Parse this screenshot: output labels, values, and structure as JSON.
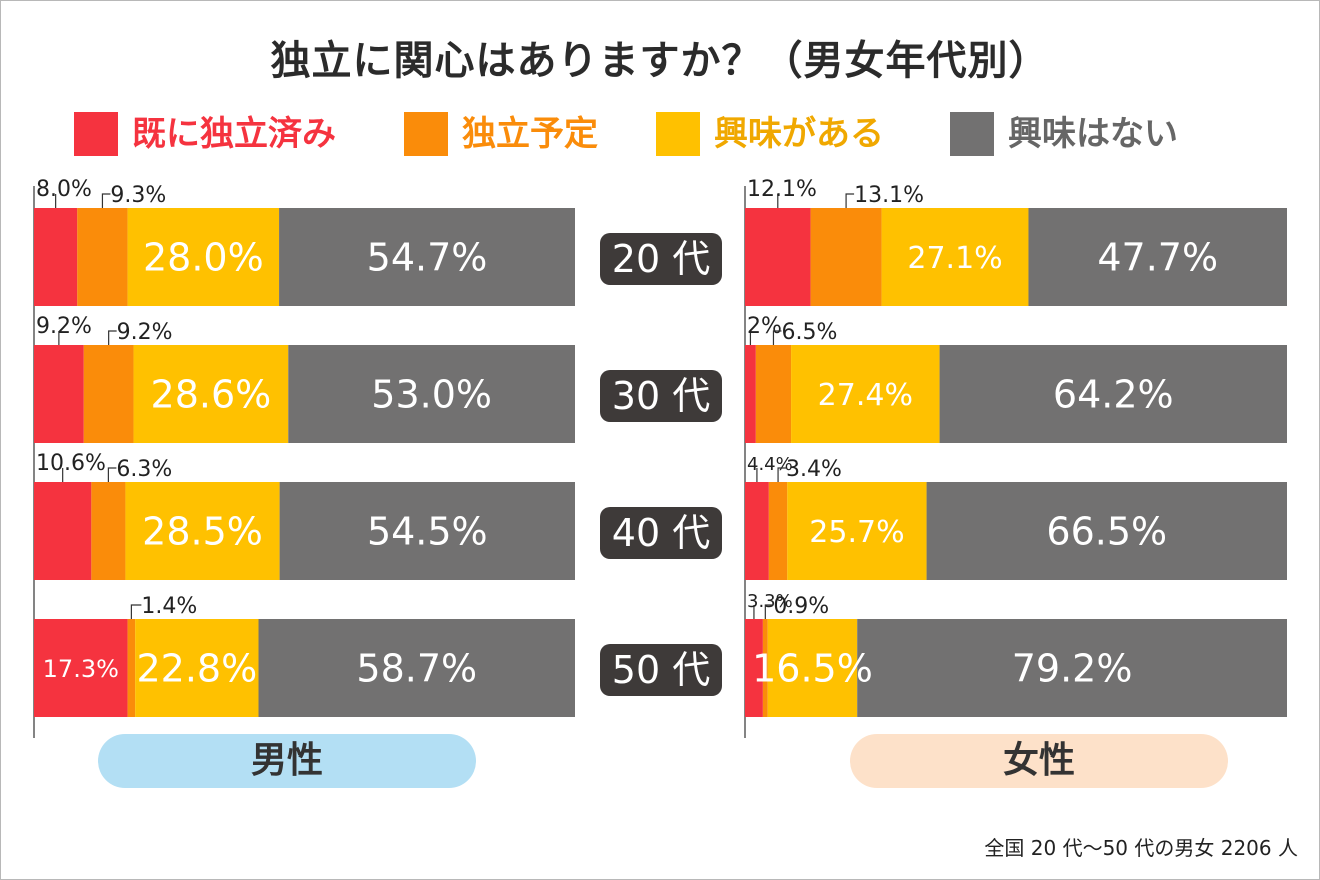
{
  "title": "独立に関心はありますか？（男女年代別）",
  "legend": [
    {
      "label": "既に独立済み",
      "color": "#f5333f"
    },
    {
      "label": "独立予定",
      "color": "#fa8c0a"
    },
    {
      "label": "興味がある",
      "color": "#ffc100"
    },
    {
      "label": "興味はない",
      "color": "#727171"
    }
  ],
  "chart_data": {
    "type": "bar",
    "orientation": "horizontal",
    "stacked": true,
    "categories": [
      "20代",
      "30代",
      "40代",
      "50代"
    ],
    "category_labels": [
      "20 代",
      "30 代",
      "40 代",
      "50 代"
    ],
    "groups": [
      {
        "name": "男性",
        "series": [
          {
            "name": "既に独立済み",
            "values": [
              8.0,
              9.2,
              10.6,
              17.3
            ],
            "labels": [
              "8.0%",
              "9.2%",
              "10.6%",
              "17.3%"
            ]
          },
          {
            "name": "独立予定",
            "values": [
              9.3,
              9.2,
              6.3,
              1.4
            ],
            "labels": [
              "9.3%",
              "9.2%",
              "6.3%",
              "1.4%"
            ]
          },
          {
            "name": "興味がある",
            "values": [
              28.0,
              28.6,
              28.5,
              22.8
            ],
            "labels": [
              "28.0%",
              "28.6%",
              "28.5%",
              "22.8%"
            ]
          },
          {
            "name": "興味はない",
            "values": [
              54.7,
              53.0,
              54.5,
              58.7
            ],
            "labels": [
              "54.7%",
              "53.0%",
              "54.5%",
              "58.7%"
            ]
          }
        ]
      },
      {
        "name": "女性",
        "series": [
          {
            "name": "既に独立済み",
            "values": [
              12.1,
              2.0,
              4.4,
              3.3
            ],
            "labels": [
              "12.1%",
              "2%",
              "4.4%",
              "3.3%"
            ]
          },
          {
            "name": "独立予定",
            "values": [
              13.1,
              6.5,
              3.4,
              0.9
            ],
            "labels": [
              "13.1%",
              "6.5%",
              "3.4%",
              "0.9%"
            ]
          },
          {
            "name": "興味がある",
            "values": [
              27.1,
              27.4,
              25.7,
              16.5
            ],
            "labels": [
              "27.1%",
              "27.4%",
              "25.7%",
              "16.5%"
            ]
          },
          {
            "name": "興味はない",
            "values": [
              47.7,
              64.2,
              66.5,
              79.2
            ],
            "labels": [
              "47.7%",
              "64.2%",
              "66.5%",
              "79.2%"
            ]
          }
        ]
      }
    ],
    "xlim": [
      0,
      100
    ]
  },
  "groups_labels": {
    "male": "男性",
    "female": "女性"
  },
  "footnote": "全国 20 代〜50 代の男女 2206 人"
}
